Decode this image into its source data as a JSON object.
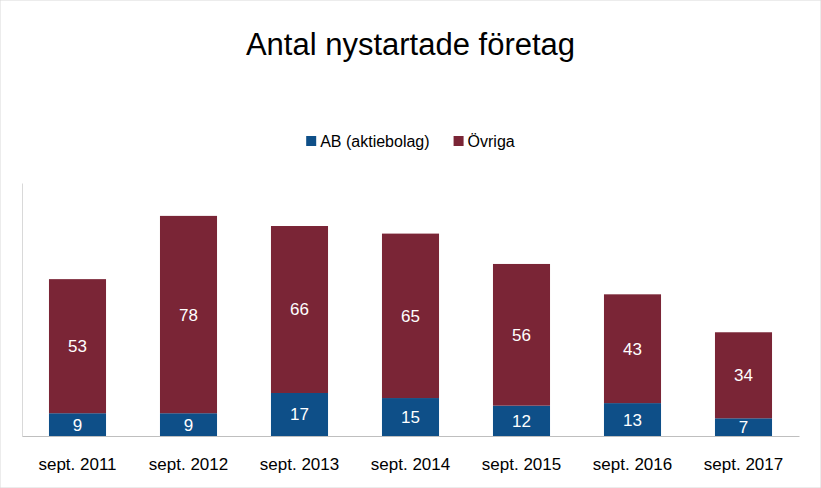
{
  "chart_data": {
    "type": "bar",
    "title": "Antal nystartade företag",
    "categories": [
      "sept. 2011",
      "sept. 2012",
      "sept. 2013",
      "sept. 2014",
      "sept. 2015",
      "sept. 2016",
      "sept. 2017"
    ],
    "series": [
      {
        "name": "AB (aktiebolag)",
        "color": "#0e4f88",
        "values": [
          9,
          9,
          17,
          15,
          12,
          13,
          7
        ]
      },
      {
        "name": "Övriga",
        "color": "#7a2536",
        "values": [
          53,
          78,
          66,
          65,
          56,
          43,
          34
        ]
      }
    ],
    "ylim": [
      0,
      100
    ],
    "stacked": true,
    "data_labels": true,
    "legend": "top",
    "tick_labels": "x",
    "grid": false
  }
}
